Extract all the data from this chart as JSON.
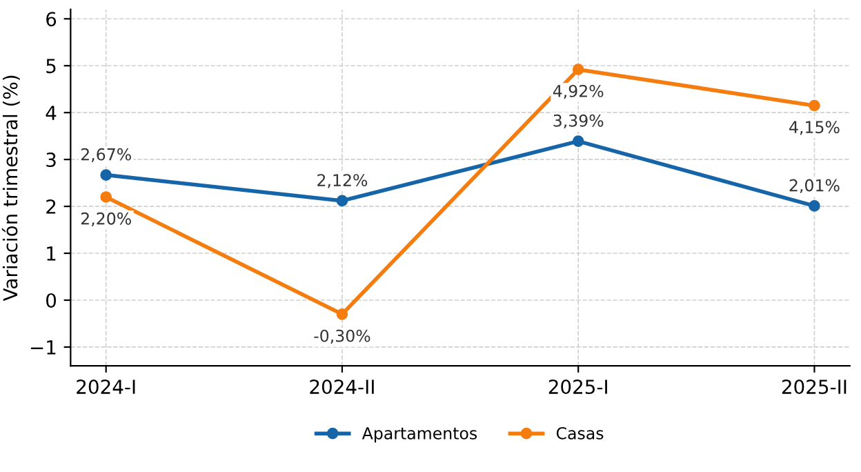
{
  "chart_data": {
    "type": "line",
    "ylabel": "Variación trimestral (%)",
    "categories": [
      "2024-I",
      "2024-II",
      "2025-I",
      "2025-II"
    ],
    "series": [
      {
        "name": "Apartamentos",
        "color": "#1565a8",
        "values": [
          2.67,
          2.12,
          3.39,
          2.01
        ],
        "value_labels": [
          "2,67%",
          "2,12%",
          "3,39%",
          "2,01%"
        ]
      },
      {
        "name": "Casas",
        "color": "#f57c0e",
        "values": [
          2.2,
          -0.3,
          4.92,
          4.15
        ],
        "value_labels": [
          "2,20%",
          "-0,30%",
          "4,92%",
          "4,15%"
        ]
      }
    ],
    "ylim": [
      -1.4,
      6.2
    ],
    "yticks": [
      {
        "value": -1,
        "label": "−1"
      },
      0,
      1,
      2,
      3,
      4,
      5,
      6
    ],
    "grid": true,
    "legend": "bottom",
    "marker": "circle",
    "line_style": "solid"
  }
}
